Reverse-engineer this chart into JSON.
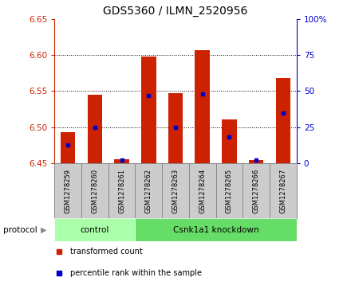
{
  "title": "GDS5360 / ILMN_2520956",
  "samples": [
    "GSM1278259",
    "GSM1278260",
    "GSM1278261",
    "GSM1278262",
    "GSM1278263",
    "GSM1278264",
    "GSM1278265",
    "GSM1278266",
    "GSM1278267"
  ],
  "transformed_count": [
    6.493,
    6.545,
    6.456,
    6.598,
    6.547,
    6.607,
    6.511,
    6.454,
    6.568
  ],
  "percentile_rank": [
    13,
    25,
    2,
    47,
    25,
    48,
    18,
    2,
    35
  ],
  "ylim_left": [
    6.45,
    6.65
  ],
  "ylim_right": [
    0,
    100
  ],
  "yticks_left": [
    6.45,
    6.5,
    6.55,
    6.6,
    6.65
  ],
  "yticks_right": [
    0,
    25,
    50,
    75,
    100
  ],
  "grid_yticks": [
    6.5,
    6.55,
    6.6
  ],
  "protocol_groups": [
    {
      "label": "control",
      "start": 0,
      "end": 3,
      "color": "#aaffaa"
    },
    {
      "label": "Csnk1a1 knockdown",
      "start": 3,
      "end": 9,
      "color": "#66dd66"
    }
  ],
  "bar_color": "#cc2200",
  "bar_base": 6.45,
  "percentile_color": "#0000cc",
  "bar_width": 0.55,
  "left_tick_color": "#cc2200",
  "right_tick_color": "#0000cc",
  "sample_box_color": "#cccccc",
  "sample_box_edge": "#888888",
  "legend_items": [
    {
      "label": "transformed count",
      "color": "#cc2200"
    },
    {
      "label": "percentile rank within the sample",
      "color": "#0000cc"
    }
  ]
}
